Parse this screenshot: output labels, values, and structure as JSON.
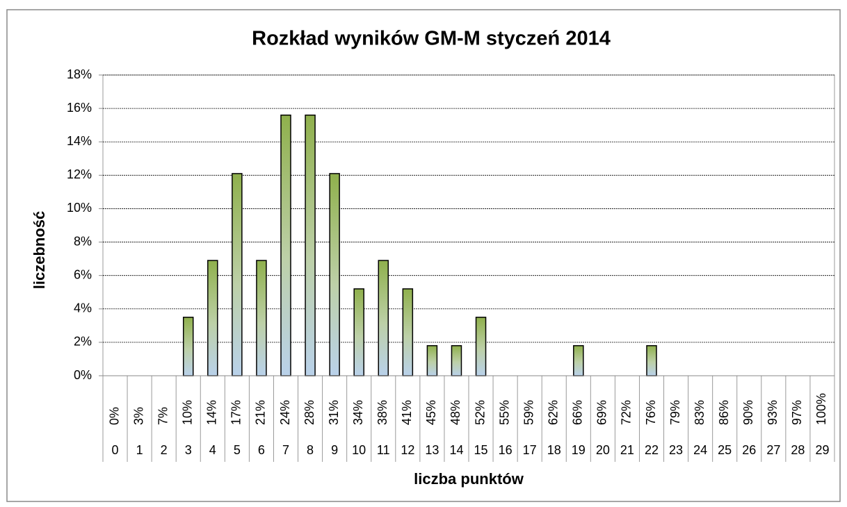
{
  "chart_data": {
    "type": "bar",
    "title": "Rozkład wyników GM-M styczeń 2014",
    "y_label": "liczebność",
    "x_label": "liczba punktów",
    "categories": [
      "0",
      "1",
      "2",
      "3",
      "4",
      "5",
      "6",
      "7",
      "8",
      "9",
      "10",
      "11",
      "12",
      "13",
      "14",
      "15",
      "16",
      "17",
      "18",
      "19",
      "20",
      "21",
      "22",
      "23",
      "24",
      "25",
      "26",
      "27",
      "28",
      "29"
    ],
    "percent_labels": [
      "0%",
      "3%",
      "7%",
      "10%",
      "14%",
      "17%",
      "21%",
      "24%",
      "28%",
      "31%",
      "34%",
      "38%",
      "41%",
      "45%",
      "48%",
      "52%",
      "55%",
      "59%",
      "62%",
      "66%",
      "69%",
      "72%",
      "76%",
      "79%",
      "83%",
      "86%",
      "90%",
      "93%",
      "97%",
      "100%"
    ],
    "values": [
      0,
      0,
      0,
      3.5,
      6.9,
      12.1,
      6.9,
      15.6,
      15.6,
      12.1,
      5.2,
      6.9,
      5.2,
      1.8,
      1.8,
      3.5,
      0,
      0,
      0,
      1.8,
      0,
      0,
      1.8,
      0,
      0,
      0,
      0,
      0,
      0,
      0
    ],
    "color": "#9bbb59",
    "ylim": [
      0,
      18
    ],
    "yticks": [
      {
        "value": 0,
        "label": "0%"
      },
      {
        "value": 2,
        "label": "2%"
      },
      {
        "value": 4,
        "label": "4%"
      },
      {
        "value": 6,
        "label": "6%"
      },
      {
        "value": 8,
        "label": "8%"
      },
      {
        "value": 10,
        "label": "10%"
      },
      {
        "value": 12,
        "label": "12%"
      },
      {
        "value": 14,
        "label": "14%"
      },
      {
        "value": 16,
        "label": "16%"
      },
      {
        "value": 18,
        "label": "18%"
      }
    ],
    "grid": true
  }
}
